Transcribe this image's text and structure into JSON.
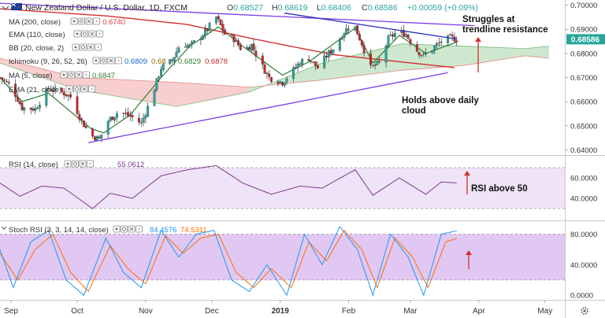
{
  "header": {
    "symbol_title": "New Zealand Dollar / U.S. Dollar, 1D, FXCM",
    "ohlc": [
      {
        "label": "O",
        "value": "0.68527"
      },
      {
        "label": "H",
        "value": "0.68619"
      },
      {
        "label": "L",
        "value": "0.68406"
      },
      {
        "label": "C",
        "value": "0.68586"
      }
    ],
    "change": "+0.00059 (+0.09%)"
  },
  "indicators": [
    {
      "label": "MA (200, close)",
      "values": [
        "0.6740"
      ],
      "colors": [
        "#e53935"
      ]
    },
    {
      "label": "EMA (110, close)",
      "values": [],
      "colors": []
    },
    {
      "label": "BB (20, close, 2)",
      "values": [],
      "colors": []
    },
    {
      "label": "Ichimoku (9, 26, 52, 26)",
      "values": [
        "0.6809",
        "0.68",
        "0.6829",
        "0.6878"
      ],
      "colors": [
        "#1565c0",
        "#8d6e00",
        "#2e7d32",
        "#c62828"
      ]
    },
    {
      "label": "MA (5, close)",
      "values": [
        "0.6847"
      ],
      "colors": [
        "#2e7d32"
      ]
    },
    {
      "label": "EMA (21, close)",
      "values": [],
      "colors": []
    }
  ],
  "annotations": {
    "resistance": "Struggles at trendline resistance",
    "cloud": "Holds above daily cloud",
    "rsi": "RSI above 50"
  },
  "rsi_panel": {
    "label": "RSI (14, close)",
    "value": "55.0612",
    "ticks": [
      "60.0000",
      "40.0000"
    ]
  },
  "stoch_panel": {
    "label": "Stoch RSI (3, 3, 14, 14, close)",
    "k_value": "84.4576",
    "d_value": "74.5311",
    "ticks": [
      "80.0000",
      "40.0000",
      "0.0000"
    ]
  },
  "price_axis": {
    "ticks": [
      "0.70000",
      "0.69000",
      "0.68000",
      "0.67000",
      "0.66000",
      "0.65000",
      "0.64000"
    ],
    "last_price": "0.68586"
  },
  "time_axis": [
    "Sep",
    "Oct",
    "Nov",
    "Dec",
    "2019",
    "Feb",
    "Mar",
    "Apr",
    "May"
  ],
  "colors": {
    "up": "#26a69a",
    "down": "#c62828",
    "ma200": "#d32f2f",
    "ma5": "#2e7d32",
    "trendline": "#7b3fe4",
    "cloud_bull": "#c8e6c9",
    "cloud_bear": "#f8c9c9",
    "rsi_line": "#7e3a8c",
    "rsi_band": "#efe3f7",
    "stoch_k": "#2196f3",
    "stoch_d": "#ff6d00",
    "stoch_band": "#e1c8f2",
    "last_price_bg": "#26a69a",
    "arrow": "#d32f2f"
  },
  "chart_data": {
    "type": "candlestick",
    "title": "New Zealand Dollar / U.S. Dollar, 1D, FXCM",
    "x_range": [
      "2018-08-27",
      "2019-05-10"
    ],
    "y_range": [
      0.6385,
      0.7015
    ],
    "price_anchors": [
      [
        "2018-08-27",
        0.67
      ],
      [
        "2018-09-01",
        0.6665
      ],
      [
        "2018-09-06",
        0.6575
      ],
      [
        "2018-09-12",
        0.657
      ],
      [
        "2018-09-18",
        0.6655
      ],
      [
        "2018-09-24",
        0.664
      ],
      [
        "2018-09-28",
        0.662
      ],
      [
        "2018-10-03",
        0.652
      ],
      [
        "2018-10-07",
        0.646
      ],
      [
        "2018-10-11",
        0.6445
      ],
      [
        "2018-10-15",
        0.652
      ],
      [
        "2018-10-20",
        0.656
      ],
      [
        "2018-10-25",
        0.654
      ],
      [
        "2018-10-30",
        0.651
      ],
      [
        "2018-11-03",
        0.66
      ],
      [
        "2018-11-08",
        0.674
      ],
      [
        "2018-11-13",
        0.677
      ],
      [
        "2018-11-17",
        0.6845
      ],
      [
        "2018-11-21",
        0.683
      ],
      [
        "2018-11-25",
        0.686
      ],
      [
        "2018-11-29",
        0.69
      ],
      [
        "2018-12-03",
        0.695
      ],
      [
        "2018-12-07",
        0.688
      ],
      [
        "2018-12-11",
        0.686
      ],
      [
        "2018-12-15",
        0.681
      ],
      [
        "2018-12-19",
        0.6835
      ],
      [
        "2018-12-23",
        0.676
      ],
      [
        "2018-12-27",
        0.67
      ],
      [
        "2019-01-02",
        0.668
      ],
      [
        "2019-01-06",
        0.672
      ],
      [
        "2019-01-10",
        0.6765
      ],
      [
        "2019-01-14",
        0.678
      ],
      [
        "2019-01-18",
        0.674
      ],
      [
        "2019-01-22",
        0.679
      ],
      [
        "2019-01-26",
        0.683
      ],
      [
        "2019-01-30",
        0.689
      ],
      [
        "2019-02-03",
        0.693
      ],
      [
        "2019-02-07",
        0.684
      ],
      [
        "2019-02-11",
        0.674
      ],
      [
        "2019-02-15",
        0.676
      ],
      [
        "2019-02-19",
        0.686
      ],
      [
        "2019-02-23",
        0.689
      ],
      [
        "2019-02-27",
        0.688
      ],
      [
        "2019-03-03",
        0.682
      ],
      [
        "2019-03-07",
        0.679
      ],
      [
        "2019-03-11",
        0.682
      ],
      [
        "2019-03-15",
        0.685
      ],
      [
        "2019-03-19",
        0.6865
      ],
      [
        "2019-03-22",
        0.6859
      ]
    ],
    "ma200_anchors": [
      [
        "2018-08-27",
        0.6985
      ],
      [
        "2018-10-15",
        0.6955
      ],
      [
        "2018-11-20",
        0.692
      ],
      [
        "2018-12-20",
        0.686
      ],
      [
        "2019-01-25",
        0.6795
      ],
      [
        "2019-03-22",
        0.674
      ]
    ],
    "ma5_anchors": [
      [
        "2018-08-27",
        0.67
      ],
      [
        "2018-09-06",
        0.66
      ],
      [
        "2018-09-18",
        0.6635
      ],
      [
        "2018-10-07",
        0.649
      ],
      [
        "2018-10-13",
        0.647
      ],
      [
        "2018-10-25",
        0.6545
      ],
      [
        "2018-11-08",
        0.67
      ],
      [
        "2018-11-21",
        0.683
      ],
      [
        "2018-12-04",
        0.691
      ],
      [
        "2018-12-15",
        0.683
      ],
      [
        "2019-01-02",
        0.671
      ],
      [
        "2019-01-14",
        0.6765
      ],
      [
        "2019-02-04",
        0.6905
      ],
      [
        "2019-02-12",
        0.676
      ],
      [
        "2019-02-24",
        0.6875
      ],
      [
        "2019-03-08",
        0.68
      ],
      [
        "2019-03-22",
        0.6847
      ]
    ],
    "cloud": [
      {
        "start": "2018-08-27",
        "span_a": [
          0.676,
          0.665
        ],
        "span_b": [
          0.678,
          0.67
        ],
        "color": "bear"
      },
      {
        "start": "2018-10-01",
        "span_a": [
          0.665,
          0.658
        ],
        "span_b": [
          0.67,
          0.668
        ],
        "color": "bear"
      },
      {
        "start": "2018-11-15",
        "span_a": [
          0.658,
          0.664
        ],
        "span_b": [
          0.668,
          0.666
        ],
        "color": "bear"
      },
      {
        "start": "2018-12-18",
        "span_a": [
          0.664,
          0.676
        ],
        "span_b": [
          0.666,
          0.669
        ],
        "color": "bull"
      },
      {
        "start": "2019-01-20",
        "span_a": [
          0.676,
          0.684
        ],
        "span_b": [
          0.669,
          0.673
        ],
        "color": "bull"
      },
      {
        "start": "2019-02-25",
        "span_a": [
          0.684,
          0.683
        ],
        "span_b": [
          0.673,
          0.675
        ],
        "color": "bull"
      },
      {
        "start": "2019-03-25",
        "span_a": [
          0.683,
          0.682
        ],
        "span_b": [
          0.675,
          0.679
        ],
        "color": "bull"
      },
      {
        "start": "2019-04-22",
        "span_a": [
          0.682,
          0.683
        ],
        "span_b": [
          0.679,
          0.678
        ],
        "color": "bull"
      }
    ],
    "trendlines": [
      {
        "name": "upper",
        "from": [
          "2018-08-27",
          0.7008
        ],
        "to": [
          "2019-03-30",
          0.6915
        ]
      },
      {
        "name": "lower",
        "from": [
          "2018-10-06",
          0.643
        ],
        "to": [
          "2019-03-18",
          0.672
        ]
      },
      {
        "name": "resistance",
        "from": [
          "2019-01-03",
          0.6967
        ],
        "to": [
          "2019-03-22",
          0.686
        ]
      }
    ],
    "rsi": {
      "y_range": [
        20,
        80
      ],
      "band": [
        30,
        70
      ],
      "anchors": [
        [
          "2018-08-27",
          55
        ],
        [
          "2018-09-05",
          42
        ],
        [
          "2018-09-15",
          52
        ],
        [
          "2018-09-25",
          50
        ],
        [
          "2018-10-08",
          30
        ],
        [
          "2018-10-16",
          45
        ],
        [
          "2018-10-26",
          40
        ],
        [
          "2018-11-08",
          62
        ],
        [
          "2018-11-20",
          68
        ],
        [
          "2018-12-03",
          72
        ],
        [
          "2018-12-15",
          55
        ],
        [
          "2018-12-28",
          44
        ],
        [
          "2019-01-10",
          52
        ],
        [
          "2019-01-20",
          50
        ],
        [
          "2019-02-04",
          68
        ],
        [
          "2019-02-12",
          43
        ],
        [
          "2019-02-24",
          60
        ],
        [
          "2019-03-08",
          44
        ],
        [
          "2019-03-15",
          56
        ],
        [
          "2019-03-22",
          55.06
        ]
      ]
    },
    "stoch_rsi": {
      "y_range": [
        -5,
        95
      ],
      "band": [
        20,
        80
      ],
      "k_anchors": [
        [
          "2018-08-27",
          60
        ],
        [
          "2018-09-02",
          10
        ],
        [
          "2018-09-10",
          70
        ],
        [
          "2018-09-18",
          85
        ],
        [
          "2018-09-26",
          20
        ],
        [
          "2018-10-04",
          0
        ],
        [
          "2018-10-14",
          75
        ],
        [
          "2018-10-22",
          30
        ],
        [
          "2018-10-30",
          10
        ],
        [
          "2018-11-08",
          85
        ],
        [
          "2018-11-16",
          50
        ],
        [
          "2018-11-24",
          80
        ],
        [
          "2018-12-02",
          85
        ],
        [
          "2018-12-10",
          20
        ],
        [
          "2018-12-18",
          5
        ],
        [
          "2018-12-26",
          40
        ],
        [
          "2019-01-04",
          0
        ],
        [
          "2019-01-12",
          80
        ],
        [
          "2019-01-20",
          40
        ],
        [
          "2019-01-28",
          90
        ],
        [
          "2019-02-05",
          60
        ],
        [
          "2019-02-12",
          0
        ],
        [
          "2019-02-20",
          80
        ],
        [
          "2019-02-28",
          50
        ],
        [
          "2019-03-07",
          0
        ],
        [
          "2019-03-15",
          80
        ],
        [
          "2019-03-22",
          84.46
        ]
      ],
      "d_anchors": [
        [
          "2018-08-27",
          55
        ],
        [
          "2018-09-04",
          20
        ],
        [
          "2018-09-12",
          60
        ],
        [
          "2018-09-20",
          80
        ],
        [
          "2018-09-28",
          30
        ],
        [
          "2018-10-06",
          5
        ],
        [
          "2018-10-16",
          65
        ],
        [
          "2018-10-24",
          35
        ],
        [
          "2018-11-01",
          15
        ],
        [
          "2018-11-10",
          78
        ],
        [
          "2018-11-18",
          55
        ],
        [
          "2018-11-26",
          75
        ],
        [
          "2018-12-04",
          80
        ],
        [
          "2018-12-12",
          30
        ],
        [
          "2018-12-20",
          10
        ],
        [
          "2018-12-28",
          35
        ],
        [
          "2019-01-06",
          10
        ],
        [
          "2019-01-14",
          70
        ],
        [
          "2019-01-22",
          45
        ],
        [
          "2019-01-30",
          85
        ],
        [
          "2019-02-07",
          60
        ],
        [
          "2019-02-14",
          10
        ],
        [
          "2019-02-22",
          75
        ],
        [
          "2019-03-02",
          50
        ],
        [
          "2019-03-09",
          10
        ],
        [
          "2019-03-17",
          70
        ],
        [
          "2019-03-22",
          74.53
        ]
      ]
    }
  }
}
